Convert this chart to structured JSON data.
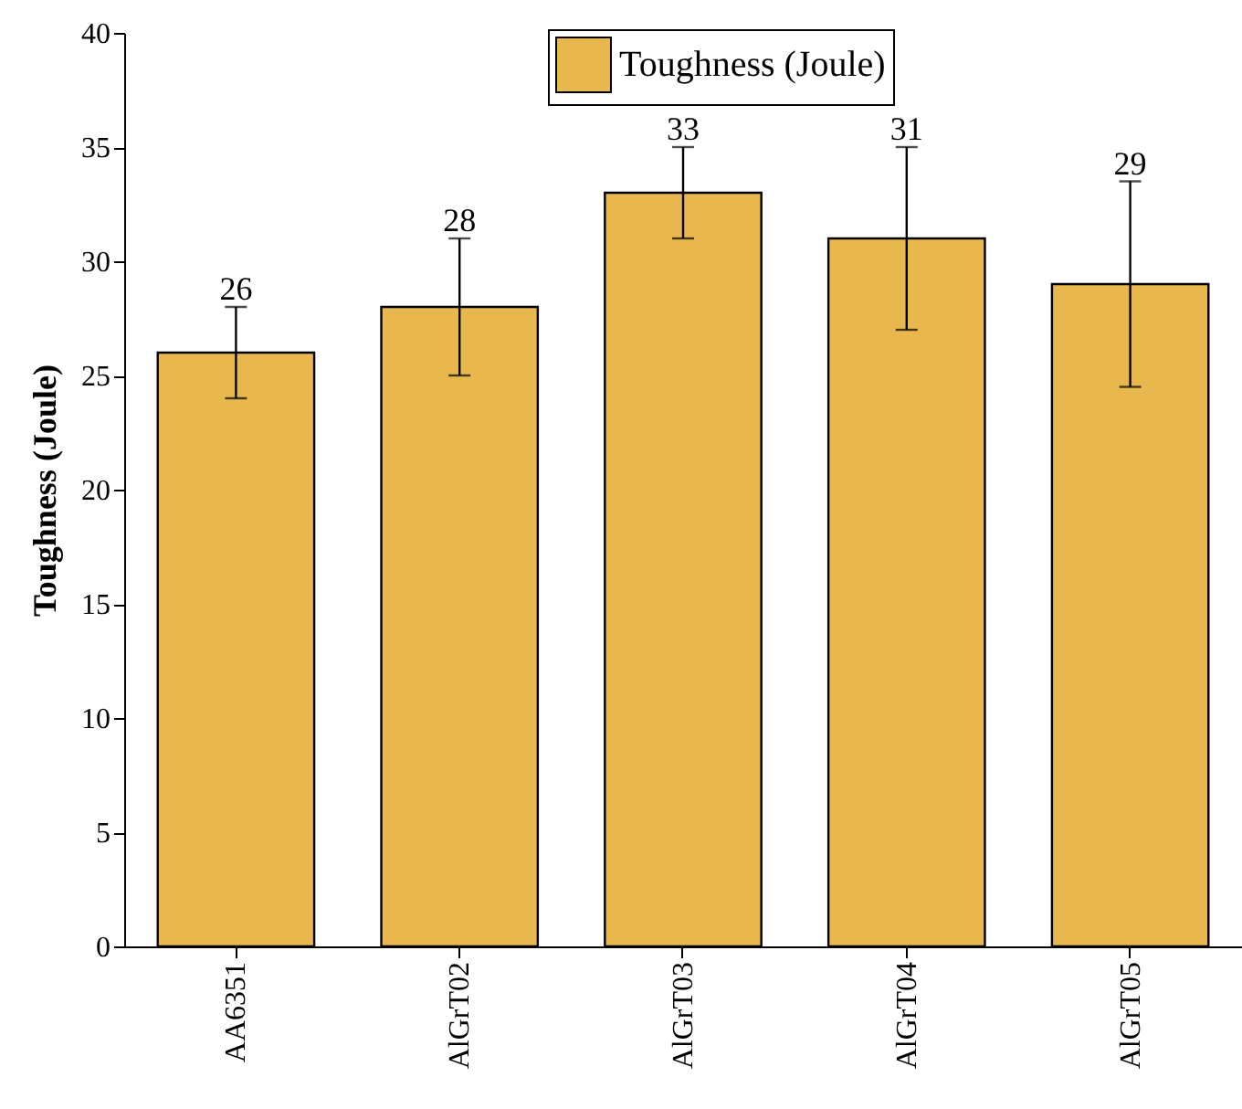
{
  "chart_data": {
    "type": "bar",
    "ylabel": "Toughness (Joule)",
    "categories": [
      "AA6351",
      "AlGrT02",
      "AlGrT03",
      "AlGrT04",
      "AlGrT05"
    ],
    "series": [
      {
        "name": "Toughness (Joule)",
        "color": "#e8b84f",
        "values": [
          26,
          28,
          33,
          31,
          29
        ],
        "errors": [
          2,
          3,
          2,
          4,
          4.5
        ]
      }
    ],
    "data_labels": true,
    "ylim": [
      0,
      40
    ],
    "yticks": [
      0,
      5,
      10,
      15,
      20,
      25,
      30,
      35,
      40
    ],
    "grid": false,
    "legend": "top right"
  }
}
